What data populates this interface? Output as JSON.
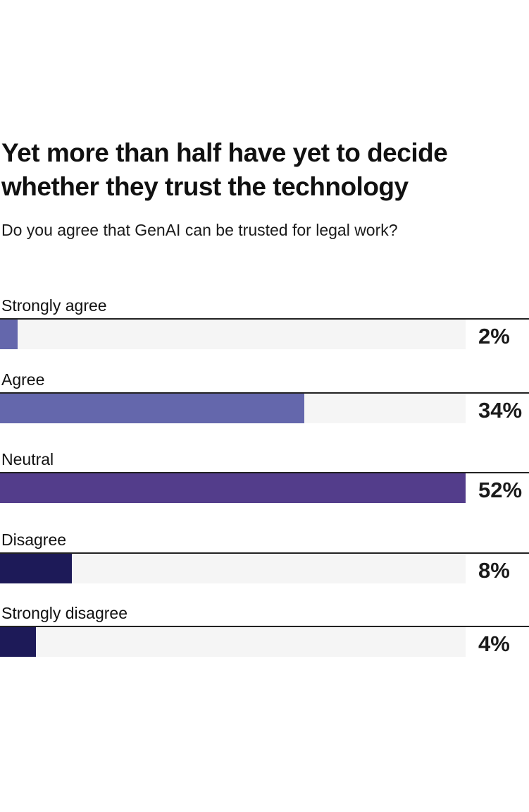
{
  "chart_data": {
    "type": "bar",
    "orientation": "horizontal",
    "title": "Yet more than half have yet to decide whether they trust the technology",
    "subtitle": "Do you agree that GenAI can be trusted for legal work?",
    "categories": [
      "Strongly agree",
      "Agree",
      "Neutral",
      "Disagree",
      "Strongly disagree"
    ],
    "values": [
      2,
      34,
      52,
      8,
      4
    ],
    "value_labels": [
      "2%",
      "34%",
      "52%",
      "8%",
      "4%"
    ],
    "colors": [
      "#6467ac",
      "#6467ac",
      "#533d8b",
      "#1d1a58",
      "#1d1a58"
    ],
    "track_color": "#f5f5f5",
    "xlim": [
      0,
      52
    ],
    "unit": "%"
  }
}
